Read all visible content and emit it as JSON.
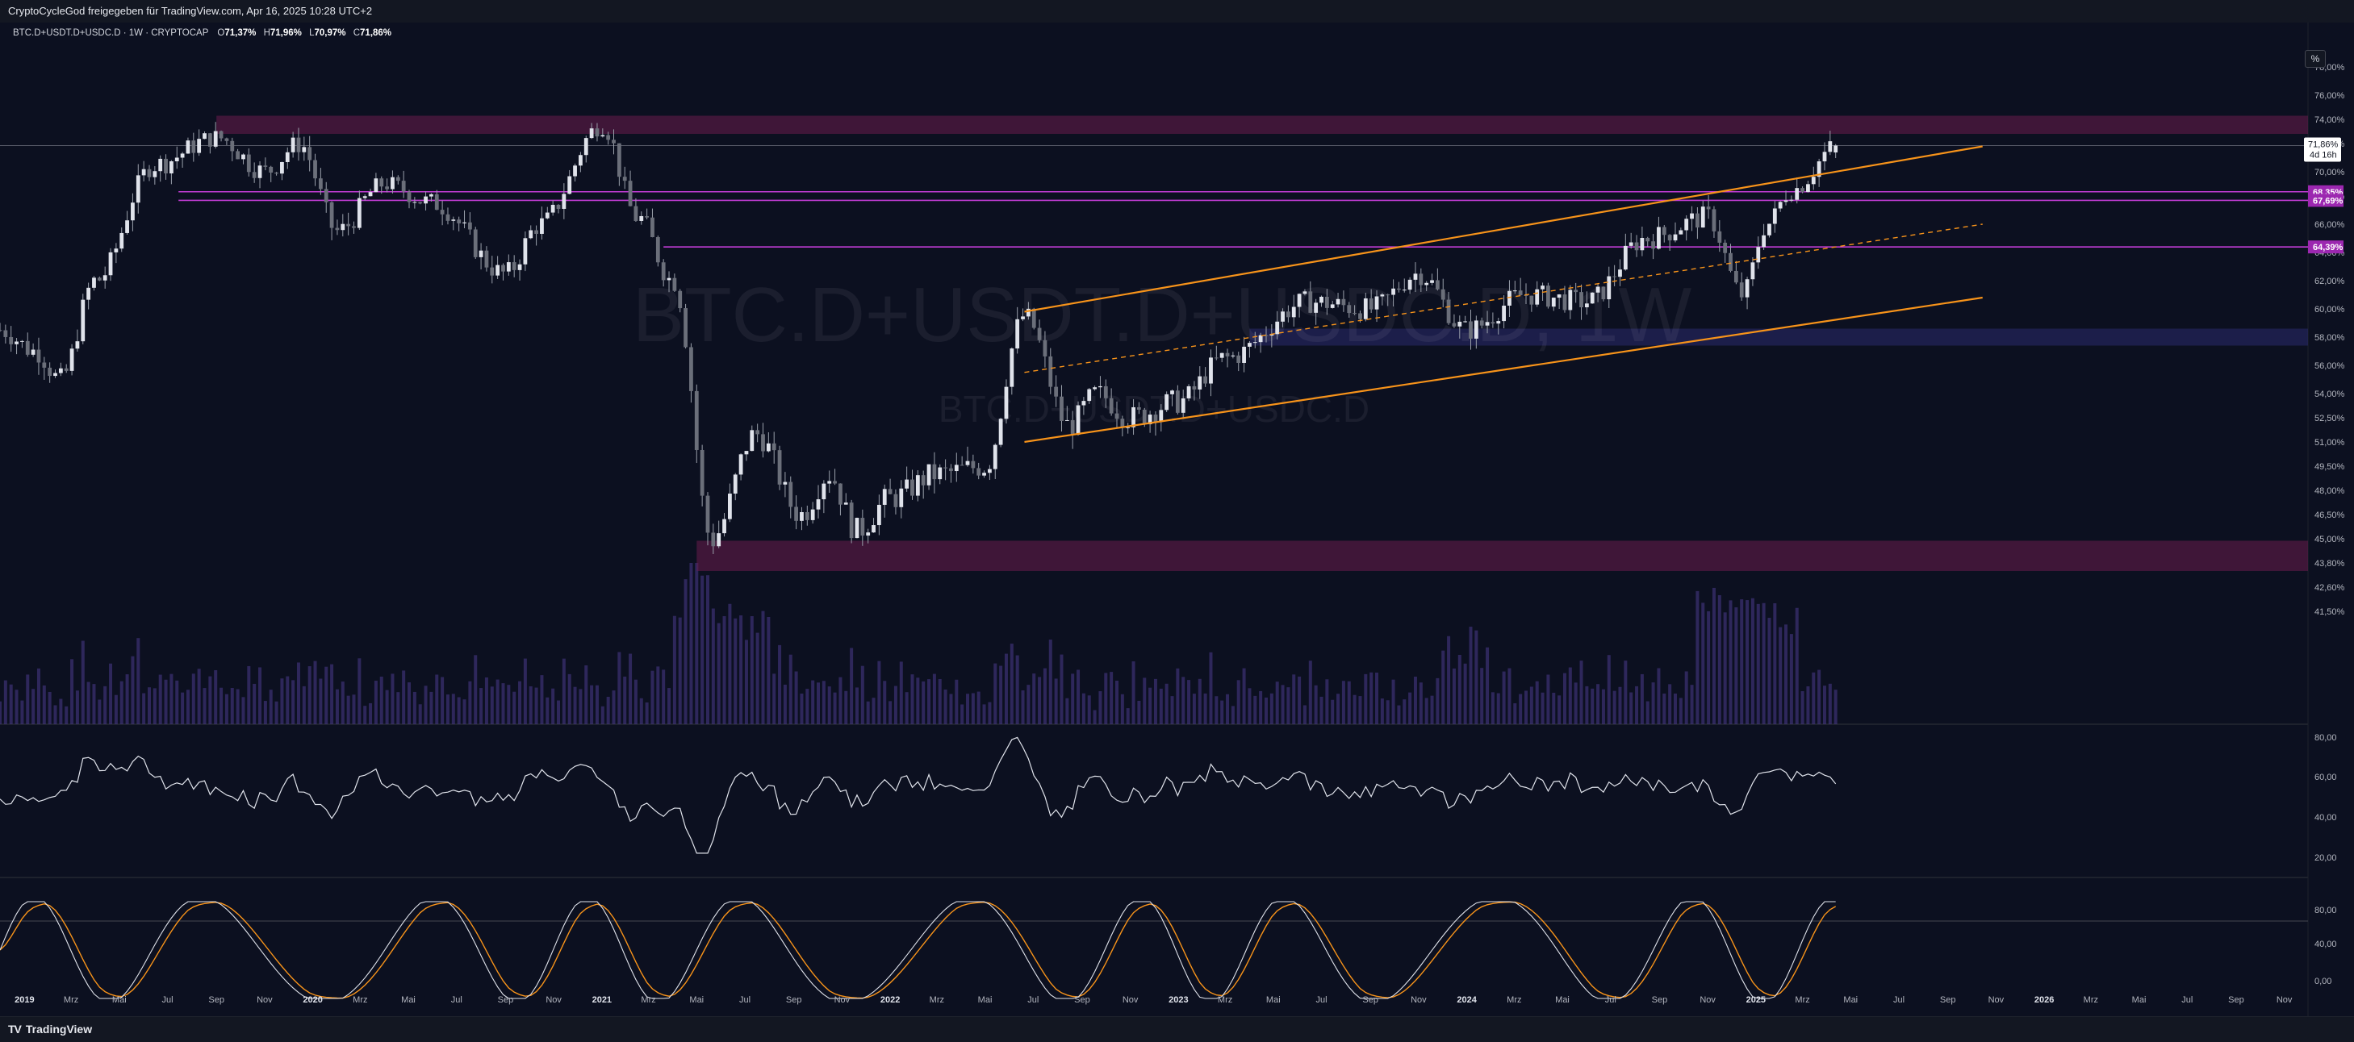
{
  "header": {
    "shared_by": "CryptoCycleGod freigegeben für TradingView.com, Apr 16, 2025 10:28 UTC+2"
  },
  "legend": {
    "symbol": "BTC.D+USDT.D+USDC.D · 1W · CRYPTOCAP",
    "o_label": "O",
    "o_value": "71,37%",
    "h_label": "H",
    "h_value": "71,96%",
    "l_label": "L",
    "l_value": "70,97%",
    "c_label": "C",
    "c_value": "71,86%"
  },
  "watermark": {
    "main": "BTC.D+USDT.D+USDC.D, 1W",
    "sub": "BTC.D+USDT.D+USDC.D"
  },
  "scale_button": "%",
  "price_axis": [
    "78,00%",
    "76,00%",
    "74,00%",
    "72,00%",
    "70,00%",
    "68,00%",
    "66,00%",
    "64,00%",
    "62,00%",
    "60,00%",
    "58,00%",
    "56,00%",
    "54,00%",
    "52,50%",
    "51,00%",
    "49,50%",
    "48,00%",
    "46,50%",
    "45,00%",
    "43,80%",
    "42,60%",
    "41,50%"
  ],
  "price_tags": [
    {
      "text": "68,35%",
      "color": "#9c27b0"
    },
    {
      "text": "67,69%",
      "color": "#9c27b0"
    },
    {
      "text": "64,39%",
      "color": "#9c27b0"
    }
  ],
  "last_price": {
    "value": "71,86%",
    "countdown": "4d 16h"
  },
  "rsi_axis": [
    "80,00",
    "60,00",
    "40,00",
    "20,00"
  ],
  "stoch_axis": [
    "80,00",
    "40,00",
    "0,00"
  ],
  "time_axis": [
    "2019",
    "Mrz",
    "Mai",
    "Jul",
    "Sep",
    "Nov",
    "2020",
    "Mrz",
    "Mai",
    "Jul",
    "Sep",
    "Nov",
    "2021",
    "Mrz",
    "Mai",
    "Jul",
    "Sep",
    "Nov",
    "2022",
    "Mrz",
    "Mai",
    "Jul",
    "Sep",
    "Nov",
    "2023",
    "Mrz",
    "Mai",
    "Jul",
    "Sep",
    "Nov",
    "2024",
    "Mrz",
    "Mai",
    "Jul",
    "Sep",
    "Nov",
    "2025",
    "Mrz",
    "Mai",
    "Jul",
    "Sep",
    "Nov",
    "2026",
    "Mrz",
    "Mai",
    "Jul",
    "Sep",
    "Nov"
  ],
  "footer": {
    "brand": "TradingView",
    "brand_mark": "TV"
  },
  "colors": {
    "background": "#0c1020",
    "candle": "#e0e3eb",
    "channel": "#f7931a",
    "level_line": "#c33cd6",
    "zone": "#6a1b4d",
    "zone_blue": "#2a2a6e",
    "volume": "#4a3a8c",
    "rsi_line": "#e0e3eb",
    "stoch_k": "#e0e3eb",
    "stoch_d": "#f7931a"
  },
  "chart_data": {
    "type": "candlestick",
    "symbol": "BTC.D+USDT.D+USDC.D",
    "interval": "1W",
    "x_range": [
      "2018-12",
      "2026-12"
    ],
    "y_range": [
      41.0,
      79.0
    ],
    "key_points": [
      {
        "date": "2018-12-01",
        "value": 58.5
      },
      {
        "date": "2019-01-15",
        "value": 57.0
      },
      {
        "date": "2019-02-15",
        "value": 55.0
      },
      {
        "date": "2019-04-01",
        "value": 62.0
      },
      {
        "date": "2019-06-15",
        "value": 70.5
      },
      {
        "date": "2019-09-01",
        "value": 72.5
      },
      {
        "date": "2019-11-01",
        "value": 70.0
      },
      {
        "date": "2019-12-15",
        "value": 72.0
      },
      {
        "date": "2020-02-01",
        "value": 65.5
      },
      {
        "date": "2020-04-01",
        "value": 69.0
      },
      {
        "date": "2020-06-01",
        "value": 67.5
      },
      {
        "date": "2020-09-01",
        "value": 62.5
      },
      {
        "date": "2020-10-15",
        "value": 66.0
      },
      {
        "date": "2021-01-01",
        "value": 73.5
      },
      {
        "date": "2021-02-15",
        "value": 66.5
      },
      {
        "date": "2021-04-01",
        "value": 62.0
      },
      {
        "date": "2021-05-20",
        "value": 45.0
      },
      {
        "date": "2021-07-15",
        "value": 51.5
      },
      {
        "date": "2021-09-10",
        "value": 46.5
      },
      {
        "date": "2021-10-15",
        "value": 49.0
      },
      {
        "date": "2021-11-20",
        "value": 45.5
      },
      {
        "date": "2022-01-01",
        "value": 47.5
      },
      {
        "date": "2022-03-01",
        "value": 49.0
      },
      {
        "date": "2022-05-01",
        "value": 49.5
      },
      {
        "date": "2022-06-20",
        "value": 59.5
      },
      {
        "date": "2022-08-15",
        "value": 52.0
      },
      {
        "date": "2022-09-20",
        "value": 54.0
      },
      {
        "date": "2022-11-01",
        "value": 52.5
      },
      {
        "date": "2023-01-01",
        "value": 53.5
      },
      {
        "date": "2023-03-01",
        "value": 56.5
      },
      {
        "date": "2023-06-15",
        "value": 60.5
      },
      {
        "date": "2023-09-01",
        "value": 60.0
      },
      {
        "date": "2023-11-01",
        "value": 62.5
      },
      {
        "date": "2024-01-01",
        "value": 58.5
      },
      {
        "date": "2024-03-15",
        "value": 61.0
      },
      {
        "date": "2024-06-01",
        "value": 60.5
      },
      {
        "date": "2024-08-15",
        "value": 65.0
      },
      {
        "date": "2024-11-01",
        "value": 66.5
      },
      {
        "date": "2024-12-15",
        "value": 61.0
      },
      {
        "date": "2025-01-15",
        "value": 66.0
      },
      {
        "date": "2025-02-15",
        "value": 68.5
      },
      {
        "date": "2025-04-14",
        "value": 71.86
      }
    ],
    "horizontal_levels": [
      68.35,
      67.69,
      64.39
    ],
    "zones": [
      {
        "from": 72.8,
        "to": 74.3,
        "start": "2019-09-01",
        "end": "2026-12"
      },
      {
        "from": 43.4,
        "to": 44.9,
        "start": "2021-05-01",
        "end": "2026-12"
      },
      {
        "from": 57.4,
        "to": 58.6,
        "start": "2023-04-01",
        "end": "2026-12"
      }
    ],
    "channel": {
      "upper": [
        {
          "date": "2022-06-20",
          "value": 59.8
        },
        {
          "date": "2025-10-15",
          "value": 71.8
        }
      ],
      "mid": [
        {
          "date": "2022-06-20",
          "value": 55.5
        },
        {
          "date": "2025-10-15",
          "value": 66.0
        }
      ],
      "lower": [
        {
          "date": "2022-06-20",
          "value": 51.0
        },
        {
          "date": "2025-10-15",
          "value": 60.8
        }
      ]
    }
  }
}
